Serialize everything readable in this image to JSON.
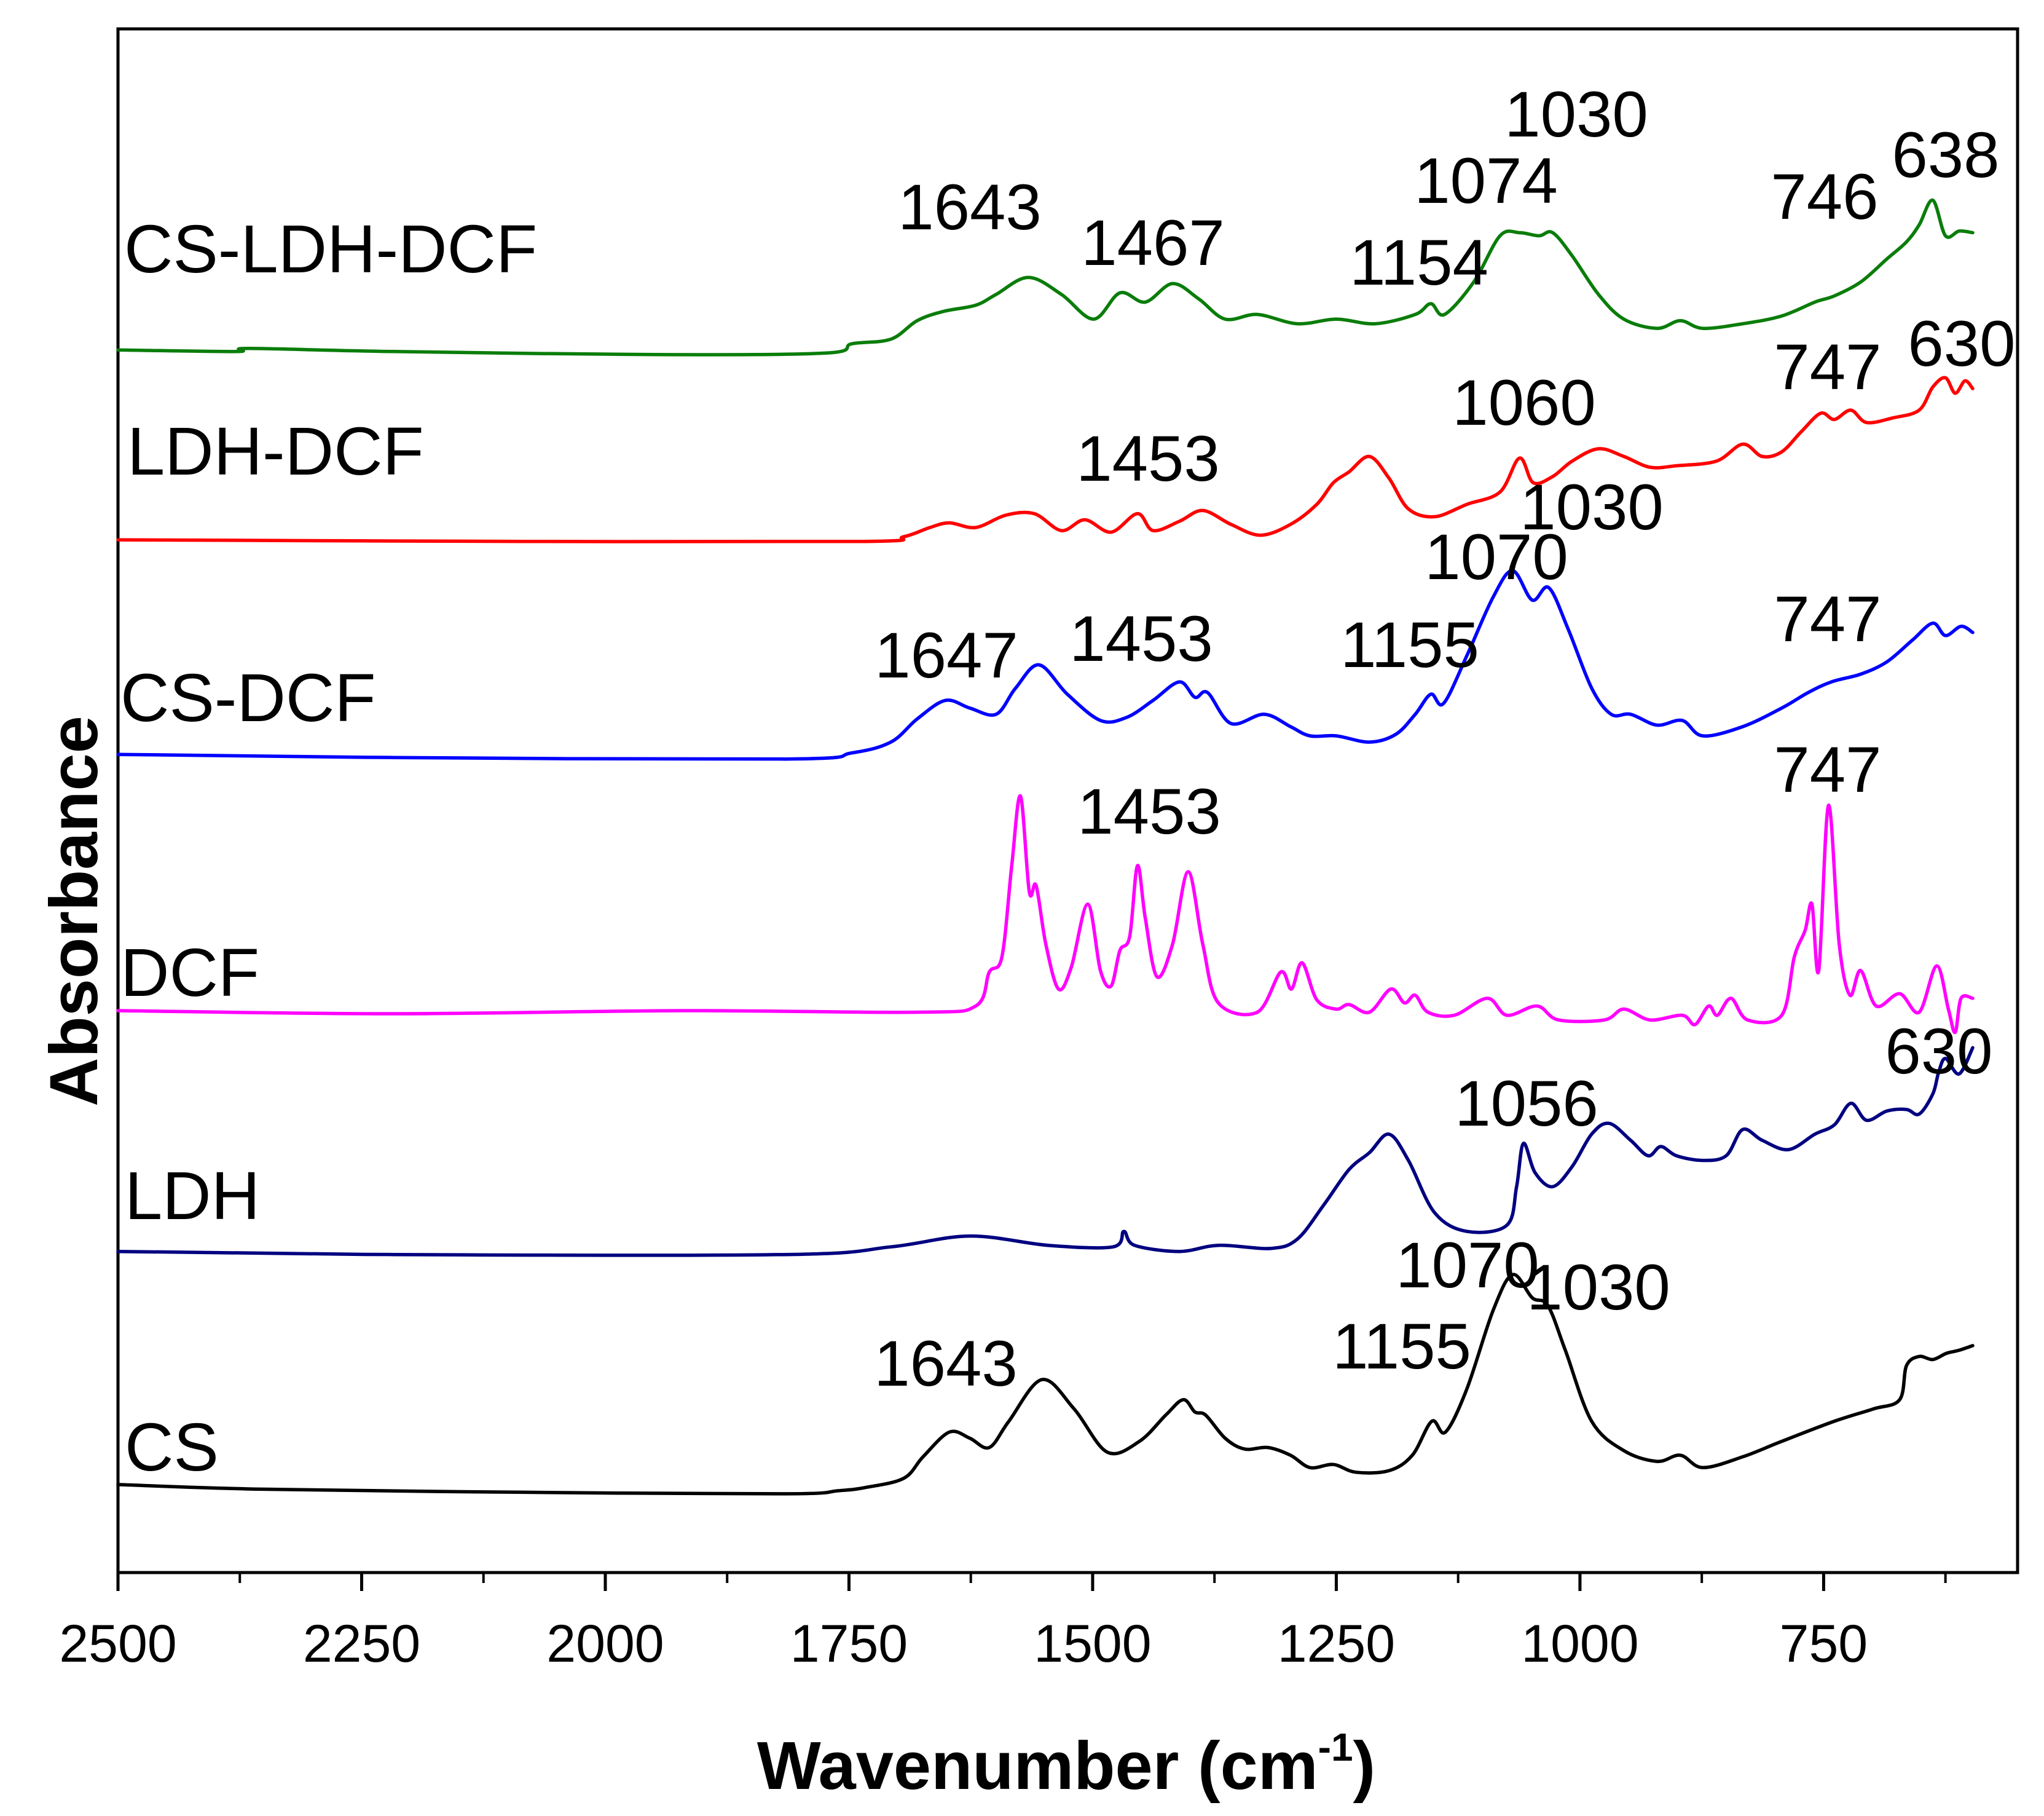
{
  "chart_data": {
    "type": "line",
    "title": "",
    "xlabel": {
      "text": "Wavenumber (cm",
      "superscript": "-1",
      "suffix": ")"
    },
    "ylabel": "Absorbance",
    "xlim": [
      2500,
      551
    ],
    "ylim": [
      0,
      100
    ],
    "x_ticks": [
      2500,
      2250,
      2000,
      1750,
      1500,
      1250,
      1000,
      750
    ],
    "x_minor_ticks": [
      2375,
      2125,
      1875,
      1625,
      1375,
      1125,
      875,
      625
    ],
    "grid": false,
    "series": [
      {
        "name": "CS-LDH-DCF",
        "color": "#0a7d0a",
        "x": [
          2500,
          2379,
          2366,
          2218,
          1949,
          1774,
          1747,
          1707,
          1680,
          1653,
          1620,
          1599,
          1566,
          1532,
          1499,
          1472,
          1446,
          1418,
          1391,
          1364,
          1331,
          1290,
          1250,
          1210,
          1169,
          1153,
          1139,
          1109,
          1082,
          1062,
          1042,
          1028,
          1008,
          981,
          955,
          921,
          897,
          874,
          833,
          793,
          759,
          739,
          712,
          685,
          665,
          652,
          638,
          625,
          611,
          597
        ],
        "y": [
          79.2,
          79.1,
          79.3,
          79.1,
          78.9,
          79.0,
          79.6,
          79.9,
          81.1,
          81.7,
          82.1,
          82.8,
          83.9,
          82.8,
          81.2,
          82.9,
          82.3,
          83.5,
          82.5,
          81.2,
          81.5,
          80.9,
          81.2,
          80.9,
          81.5,
          82.2,
          81.5,
          83.6,
          86.6,
          86.8,
          86.6,
          86.8,
          85.3,
          82.8,
          81.2,
          80.6,
          81.1,
          80.6,
          80.9,
          81.4,
          82.3,
          82.7,
          83.6,
          85.1,
          86.2,
          87.3,
          88.9,
          86.6,
          86.9,
          86.8
        ]
      },
      {
        "name": "LDH-DCF",
        "color": "#ff0000",
        "x": [
          2500,
          2083,
          1734,
          1694,
          1667,
          1647,
          1620,
          1589,
          1560,
          1532,
          1508,
          1481,
          1454,
          1438,
          1411,
          1387,
          1358,
          1328,
          1297,
          1270,
          1253,
          1237,
          1216,
          1196,
          1176,
          1149,
          1116,
          1082,
          1062,
          1048,
          1028,
          1008,
          981,
          955,
          928,
          901,
          860,
          833,
          813,
          793,
          773,
          753,
          739,
          722,
          706,
          679,
          652,
          638,
          625,
          615,
          605,
          597
        ],
        "y": [
          66.9,
          66.8,
          66.8,
          67.1,
          67.7,
          68.0,
          67.7,
          68.5,
          68.6,
          67.5,
          68.2,
          67.4,
          68.6,
          67.5,
          68.1,
          68.8,
          67.9,
          67.2,
          67.9,
          69.2,
          70.6,
          71.3,
          72.3,
          70.9,
          68.9,
          68.4,
          69.2,
          70.0,
          72.2,
          70.6,
          71.0,
          72.0,
          72.8,
          72.3,
          71.6,
          71.7,
          72.0,
          73.1,
          72.3,
          72.6,
          73.9,
          75.1,
          74.7,
          75.3,
          74.5,
          74.8,
          75.3,
          76.8,
          77.4,
          76.4,
          77.2,
          76.7
        ]
      },
      {
        "name": "CS-DCF",
        "color": "#0000ff",
        "x": [
          2500,
          2218,
          1815,
          1747,
          1707,
          1680,
          1651,
          1626,
          1599,
          1579,
          1555,
          1526,
          1492,
          1465,
          1438,
          1411,
          1395,
          1382,
          1358,
          1324,
          1297,
          1277,
          1250,
          1216,
          1189,
          1169,
          1153,
          1140,
          1116,
          1089,
          1069,
          1049,
          1032,
          1012,
          988,
          968,
          948,
          921,
          895,
          874,
          833,
          793,
          766,
          742,
          712,
          685,
          659,
          638,
          625,
          609,
          597
        ],
        "y": [
          53.0,
          52.8,
          52.7,
          53.1,
          53.8,
          55.3,
          56.5,
          56.0,
          55.6,
          57.3,
          58.8,
          56.9,
          55.2,
          55.4,
          56.5,
          57.7,
          56.7,
          57.0,
          55.0,
          55.6,
          54.8,
          54.2,
          54.2,
          53.8,
          54.3,
          55.6,
          56.9,
          56.3,
          59.4,
          63.2,
          64.9,
          63.0,
          63.8,
          61.1,
          57.3,
          55.6,
          55.6,
          54.9,
          55.2,
          54.2,
          54.8,
          56.0,
          57.0,
          57.7,
          58.2,
          59.0,
          60.4,
          61.5,
          60.7,
          61.3,
          60.9
        ]
      },
      {
        "name": "DCF",
        "color": "#ff00ff",
        "x": [
          2500,
          2218,
          1922,
          1680,
          1620,
          1606,
          1593,
          1583,
          1574,
          1565,
          1558,
          1548,
          1535,
          1522,
          1505,
          1492,
          1481,
          1472,
          1462,
          1454,
          1446,
          1434,
          1418,
          1402,
          1387,
          1371,
          1331,
          1307,
          1296,
          1285,
          1270,
          1250,
          1237,
          1216,
          1194,
          1180,
          1169,
          1156,
          1129,
          1095,
          1075,
          1044,
          1022,
          975,
          955,
          928,
          895,
          882,
          868,
          859,
          845,
          828,
          793,
          780,
          769,
          762,
          755,
          745,
          734,
          723,
          712,
          696,
          672,
          652,
          634,
          622,
          615,
          609,
          597
        ],
        "y": [
          36.4,
          36.2,
          36.4,
          36.3,
          36.7,
          38.9,
          39.9,
          45.8,
          50.3,
          44.1,
          44.5,
          40.7,
          37.8,
          39.2,
          43.3,
          39.0,
          38.0,
          40.3,
          41.2,
          45.8,
          42.4,
          38.6,
          40.7,
          45.4,
          40.7,
          36.9,
          36.3,
          38.9,
          37.8,
          39.5,
          37.1,
          36.5,
          36.8,
          36.3,
          37.8,
          36.9,
          37.4,
          36.3,
          36.1,
          37.2,
          36.1,
          36.7,
          35.8,
          35.8,
          36.5,
          35.8,
          36.1,
          35.5,
          36.7,
          36.1,
          37.2,
          35.8,
          36.1,
          39.9,
          41.6,
          43.3,
          39.0,
          49.7,
          40.7,
          37.4,
          39.0,
          36.7,
          37.5,
          36.3,
          39.3,
          36.5,
          35.0,
          37.2,
          37.2
        ]
      },
      {
        "name": "LDH",
        "color": "#000080",
        "x": [
          2500,
          2218,
          1815,
          1707,
          1626,
          1546,
          1479,
          1468,
          1457,
          1411,
          1371,
          1317,
          1290,
          1263,
          1237,
          1216,
          1196,
          1176,
          1149,
          1116,
          1075,
          1065,
          1058,
          1046,
          1028,
          1008,
          988,
          970,
          948,
          930,
          917,
          901,
          874,
          850,
          833,
          813,
          786,
          759,
          739,
          722,
          706,
          685,
          665,
          652,
          638,
          632,
          625,
          611,
          597
        ],
        "y": [
          20.8,
          20.6,
          20.6,
          21.1,
          21.8,
          21.2,
          21.1,
          22.1,
          21.2,
          20.8,
          21.2,
          21.0,
          21.6,
          23.8,
          26.1,
          27.2,
          28.4,
          26.7,
          23.3,
          22.1,
          22.5,
          25.0,
          27.8,
          25.9,
          25.0,
          26.3,
          28.4,
          29.1,
          28.0,
          27.0,
          27.6,
          27.0,
          26.7,
          27.0,
          28.7,
          28.0,
          27.4,
          28.4,
          29.0,
          30.4,
          29.3,
          29.9,
          30.0,
          29.7,
          31.0,
          32.4,
          33.3,
          32.3,
          34.0
        ]
      },
      {
        "name": "CS",
        "color": "#000000",
        "x": [
          2500,
          2352,
          2083,
          1815,
          1761,
          1734,
          1694,
          1674,
          1647,
          1626,
          1606,
          1586,
          1552,
          1519,
          1485,
          1452,
          1425,
          1407,
          1395,
          1384,
          1364,
          1344,
          1320,
          1297,
          1277,
          1253,
          1230,
          1196,
          1172,
          1152,
          1138,
          1116,
          1089,
          1069,
          1049,
          1033,
          1015,
          988,
          955,
          921,
          897,
          874,
          833,
          793,
          739,
          699,
          672,
          665,
          652,
          638,
          624,
          611,
          597
        ],
        "y": [
          5.7,
          5.4,
          5.2,
          5.1,
          5.3,
          5.5,
          6.1,
          7.5,
          9.1,
          8.7,
          8.1,
          9.8,
          12.5,
          10.6,
          7.8,
          8.5,
          10.2,
          11.2,
          10.4,
          10.2,
          8.7,
          8.0,
          8.1,
          7.6,
          6.8,
          7.0,
          6.5,
          6.6,
          7.6,
          9.8,
          9.1,
          11.9,
          17.0,
          19.3,
          17.8,
          17.3,
          14.4,
          9.8,
          7.9,
          7.2,
          7.6,
          6.8,
          7.5,
          8.5,
          9.8,
          10.6,
          11.2,
          13.4,
          14.0,
          13.8,
          14.2,
          14.4,
          14.7
        ]
      }
    ],
    "annotations": [
      {
        "series": "CS-LDH-DCF",
        "label": "1643"
      },
      {
        "series": "CS-LDH-DCF",
        "label": "1467"
      },
      {
        "series": "CS-LDH-DCF",
        "label": "1154"
      },
      {
        "series": "CS-LDH-DCF",
        "label": "1074"
      },
      {
        "series": "CS-LDH-DCF",
        "label": "1030"
      },
      {
        "series": "CS-LDH-DCF",
        "label": "746"
      },
      {
        "series": "CS-LDH-DCF",
        "label": "638"
      },
      {
        "series": "LDH-DCF",
        "label": "630"
      },
      {
        "series": "LDH-DCF",
        "label": "747"
      },
      {
        "series": "LDH-DCF",
        "label": "1060"
      },
      {
        "series": "LDH-DCF",
        "label": "1453"
      },
      {
        "series": "CS-DCF",
        "label": "1030"
      },
      {
        "series": "CS-DCF",
        "label": "1070"
      },
      {
        "series": "CS-DCF",
        "label": "1647"
      },
      {
        "series": "CS-DCF",
        "label": "1453"
      },
      {
        "series": "CS-DCF",
        "label": "1155"
      },
      {
        "series": "CS-DCF",
        "label": "747"
      },
      {
        "series": "DCF",
        "label": "1453"
      },
      {
        "series": "DCF",
        "label": "747"
      },
      {
        "series": "LDH",
        "label": "630"
      },
      {
        "series": "LDH",
        "label": "1056"
      },
      {
        "series": "CS",
        "label": "1070"
      },
      {
        "series": "CS",
        "label": "1030"
      },
      {
        "series": "CS",
        "label": "1155"
      },
      {
        "series": "CS",
        "label": "1643"
      }
    ]
  }
}
